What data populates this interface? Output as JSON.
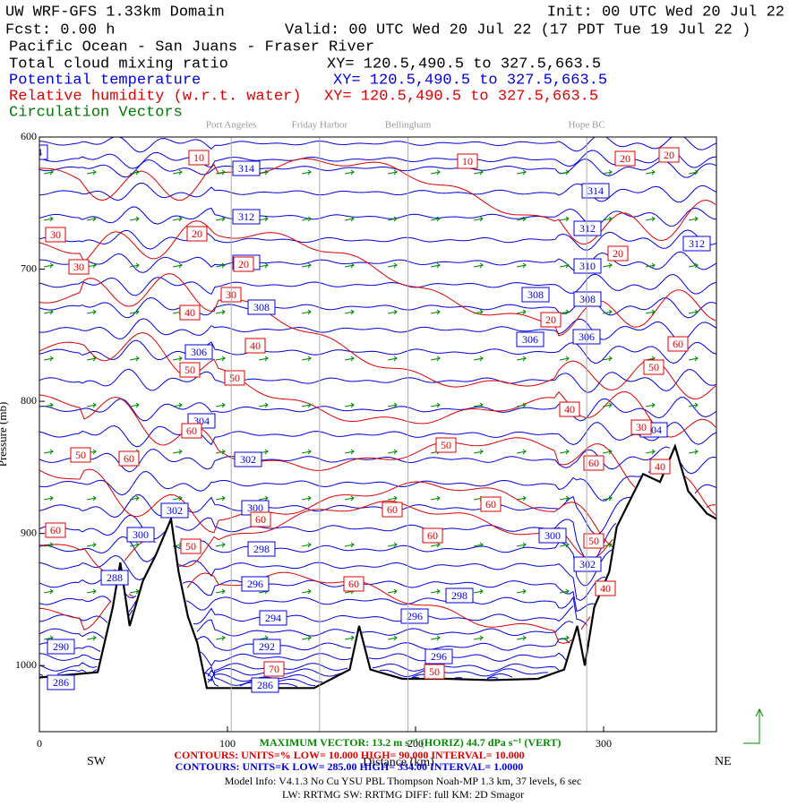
{
  "header": {
    "title": "UW WRF-GFS 1.33km Domain",
    "init": "Init: 00 UTC Wed 20 Jul 22",
    "fcst": "Fcst:    0.00 h",
    "valid": "Valid: 00 UTC Wed 20 Jul 22   (17 PDT Tue 19 Jul 22  )",
    "region": "Pacific Ocean - San Juans - Fraser River",
    "fields": [
      {
        "name": "Total cloud mixing ratio",
        "xy": "XY= 120.5,490.5 to 327.5,663.5",
        "color": "#000000"
      },
      {
        "name": "Potential temperature",
        "xy": "XY= 120.5,490.5 to 327.5,663.5",
        "color": "#0000dd"
      },
      {
        "name": "Relative humidity (w.r.t. water)",
        "xy": "XY= 120.5,490.5 to 327.5,663.5",
        "color": "#dd0000"
      },
      {
        "name": "Circulation Vectors",
        "color": "#007700"
      }
    ]
  },
  "chart_data": {
    "type": "cross-section",
    "xlabel": "Distance (km)",
    "ylabel": "Pressure (mb)",
    "xlim": [
      0,
      360
    ],
    "xticks": [
      0,
      100,
      200,
      300
    ],
    "ylim": [
      600,
      1050
    ],
    "yticks": [
      600,
      700,
      800,
      900,
      1000
    ],
    "y_reversed": true,
    "left_label": "SW",
    "right_label": "NE",
    "locations": [
      {
        "name": "Port Angeles",
        "x": 102
      },
      {
        "name": "Friday Harbor",
        "x": 149
      },
      {
        "name": "Bellingham",
        "x": 196
      },
      {
        "name": "Hope BC",
        "x": 291
      }
    ],
    "terrain": {
      "color": "#000000",
      "x": [
        0,
        31,
        39,
        43,
        48,
        55,
        62,
        70,
        74,
        79,
        84,
        89,
        103,
        122,
        146,
        165,
        170,
        176,
        193,
        217,
        240,
        265,
        279,
        286,
        290,
        295,
        303,
        307,
        314,
        321,
        330,
        338,
        345,
        355,
        360
      ],
      "values": [
        1009,
        1005,
        956,
        922,
        970,
        936,
        916,
        889,
        929,
        963,
        983,
        1017,
        1017,
        1017,
        1017,
        1003,
        970,
        1003,
        1010,
        1010,
        1011,
        1010,
        1003,
        970,
        1000,
        956,
        929,
        895,
        875,
        855,
        861,
        834,
        868,
        885,
        889
      ]
    },
    "contour_labels": {
      "theta_color": "#0000dd",
      "rh_color": "#dd0000",
      "theta": [
        314,
        312,
        310,
        308,
        306,
        304,
        302,
        300,
        298,
        296,
        294,
        292,
        290,
        288,
        286,
        286,
        302,
        300,
        304,
        308,
        306,
        312,
        314,
        310,
        308,
        306,
        312,
        300,
        302,
        298,
        296,
        296,
        304
      ],
      "rh": [
        10,
        10,
        30,
        30,
        20,
        20,
        30,
        40,
        40,
        50,
        50,
        60,
        50,
        60,
        60,
        60,
        60,
        60,
        60,
        50,
        60,
        70,
        50,
        20,
        40,
        50,
        60,
        40,
        60,
        50,
        40,
        20,
        20,
        20,
        30,
        50
      ]
    }
  },
  "footer": {
    "vector": "MAXIMUM VECTOR:  13.2 m s⁻¹ (HORIZ)      44.7 dPa s⁻¹ (VERT)",
    "rh_contours": "CONTOURS:  UNITS=%  LOW=  10.000      HIGH=  90.000      INTERVAL=   10.000",
    "theta_contours": "CONTOURS:  UNITS=K  LOW=  285.00      HIGH=  334.00      INTERVAL=   1.0000",
    "model": "Model Info: V4.1.3    No Cu   YSU PBL  Thompson    Noah-MP    1.3 km,   37 levels,    6 sec",
    "physics": "LW: RRTMG SW: RRTMG    DIFF: full    KM: 2D Smagor"
  }
}
